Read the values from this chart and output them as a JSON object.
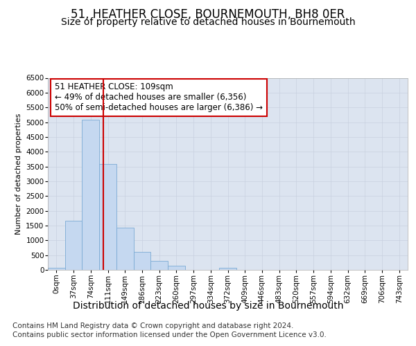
{
  "title": "51, HEATHER CLOSE, BOURNEMOUTH, BH8 0ER",
  "subtitle": "Size of property relative to detached houses in Bournemouth",
  "xlabel": "Distribution of detached houses by size in Bournemouth",
  "ylabel": "Number of detached properties",
  "categories": [
    "0sqm",
    "37sqm",
    "74sqm",
    "111sqm",
    "149sqm",
    "186sqm",
    "223sqm",
    "260sqm",
    "297sqm",
    "334sqm",
    "372sqm",
    "409sqm",
    "446sqm",
    "483sqm",
    "520sqm",
    "557sqm",
    "594sqm",
    "632sqm",
    "669sqm",
    "706sqm",
    "743sqm"
  ],
  "values": [
    75,
    1670,
    5080,
    3590,
    1420,
    620,
    295,
    150,
    0,
    0,
    60,
    0,
    0,
    0,
    0,
    0,
    0,
    0,
    0,
    0,
    0
  ],
  "bar_color": "#c5d8f0",
  "bar_edge_color": "#7aaad4",
  "vline_x": 2.75,
  "vline_color": "#cc0000",
  "annotation_text": "51 HEATHER CLOSE: 109sqm\n← 49% of detached houses are smaller (6,356)\n50% of semi-detached houses are larger (6,386) →",
  "annotation_box_color": "#cc0000",
  "ylim": [
    0,
    6500
  ],
  "yticks": [
    0,
    500,
    1000,
    1500,
    2000,
    2500,
    3000,
    3500,
    4000,
    4500,
    5000,
    5500,
    6000,
    6500
  ],
  "grid_color": "#c8d0df",
  "background_color": "#dce4f0",
  "footer_line1": "Contains HM Land Registry data © Crown copyright and database right 2024.",
  "footer_line2": "Contains public sector information licensed under the Open Government Licence v3.0.",
  "title_fontsize": 12,
  "subtitle_fontsize": 10,
  "annotation_fontsize": 8.5,
  "xlabel_fontsize": 10,
  "ylabel_fontsize": 8,
  "footer_fontsize": 7.5,
  "tick_fontsize": 7.5
}
